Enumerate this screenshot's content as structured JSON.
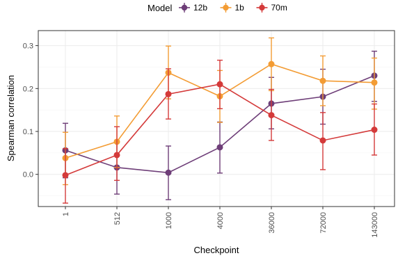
{
  "chart_data": {
    "type": "line",
    "xlabel": "Checkpoint",
    "ylabel": "Spearman correlation",
    "categories": [
      "1",
      "512",
      "1000",
      "4000",
      "36000",
      "72000",
      "143000"
    ],
    "ylim": [
      -0.075,
      0.335
    ],
    "yticks": [
      0.0,
      0.1,
      0.2,
      0.3
    ],
    "ytick_labels": [
      "0.0",
      "0.1",
      "0.2",
      "0.3"
    ],
    "grid": true,
    "legend": {
      "title": "Model",
      "position": "top"
    },
    "series": [
      {
        "name": "12b",
        "color": "#6e3e78",
        "values": [
          0.056,
          0.016,
          0.004,
          0.063,
          0.165,
          0.181,
          0.23
        ],
        "lower": [
          -0.008,
          -0.046,
          -0.059,
          0.003,
          0.106,
          0.117,
          0.17
        ],
        "upper": [
          0.119,
          0.078,
          0.066,
          0.122,
          0.226,
          0.245,
          0.287
        ]
      },
      {
        "name": "1b",
        "color": "#f39c34",
        "values": [
          0.038,
          0.076,
          0.237,
          0.182,
          0.257,
          0.218,
          0.214
        ],
        "lower": [
          -0.024,
          0.016,
          0.176,
          0.121,
          0.195,
          0.16,
          0.152
        ],
        "upper": [
          0.098,
          0.136,
          0.299,
          0.242,
          0.318,
          0.276,
          0.271
        ]
      },
      {
        "name": "70m",
        "color": "#d43a3a",
        "values": [
          -0.002,
          0.045,
          0.187,
          0.21,
          0.138,
          0.079,
          0.104
        ],
        "lower": [
          -0.067,
          -0.014,
          0.129,
          0.153,
          0.079,
          0.011,
          0.045
        ],
        "upper": [
          0.06,
          0.111,
          0.246,
          0.266,
          0.198,
          0.144,
          0.164
        ]
      }
    ]
  }
}
